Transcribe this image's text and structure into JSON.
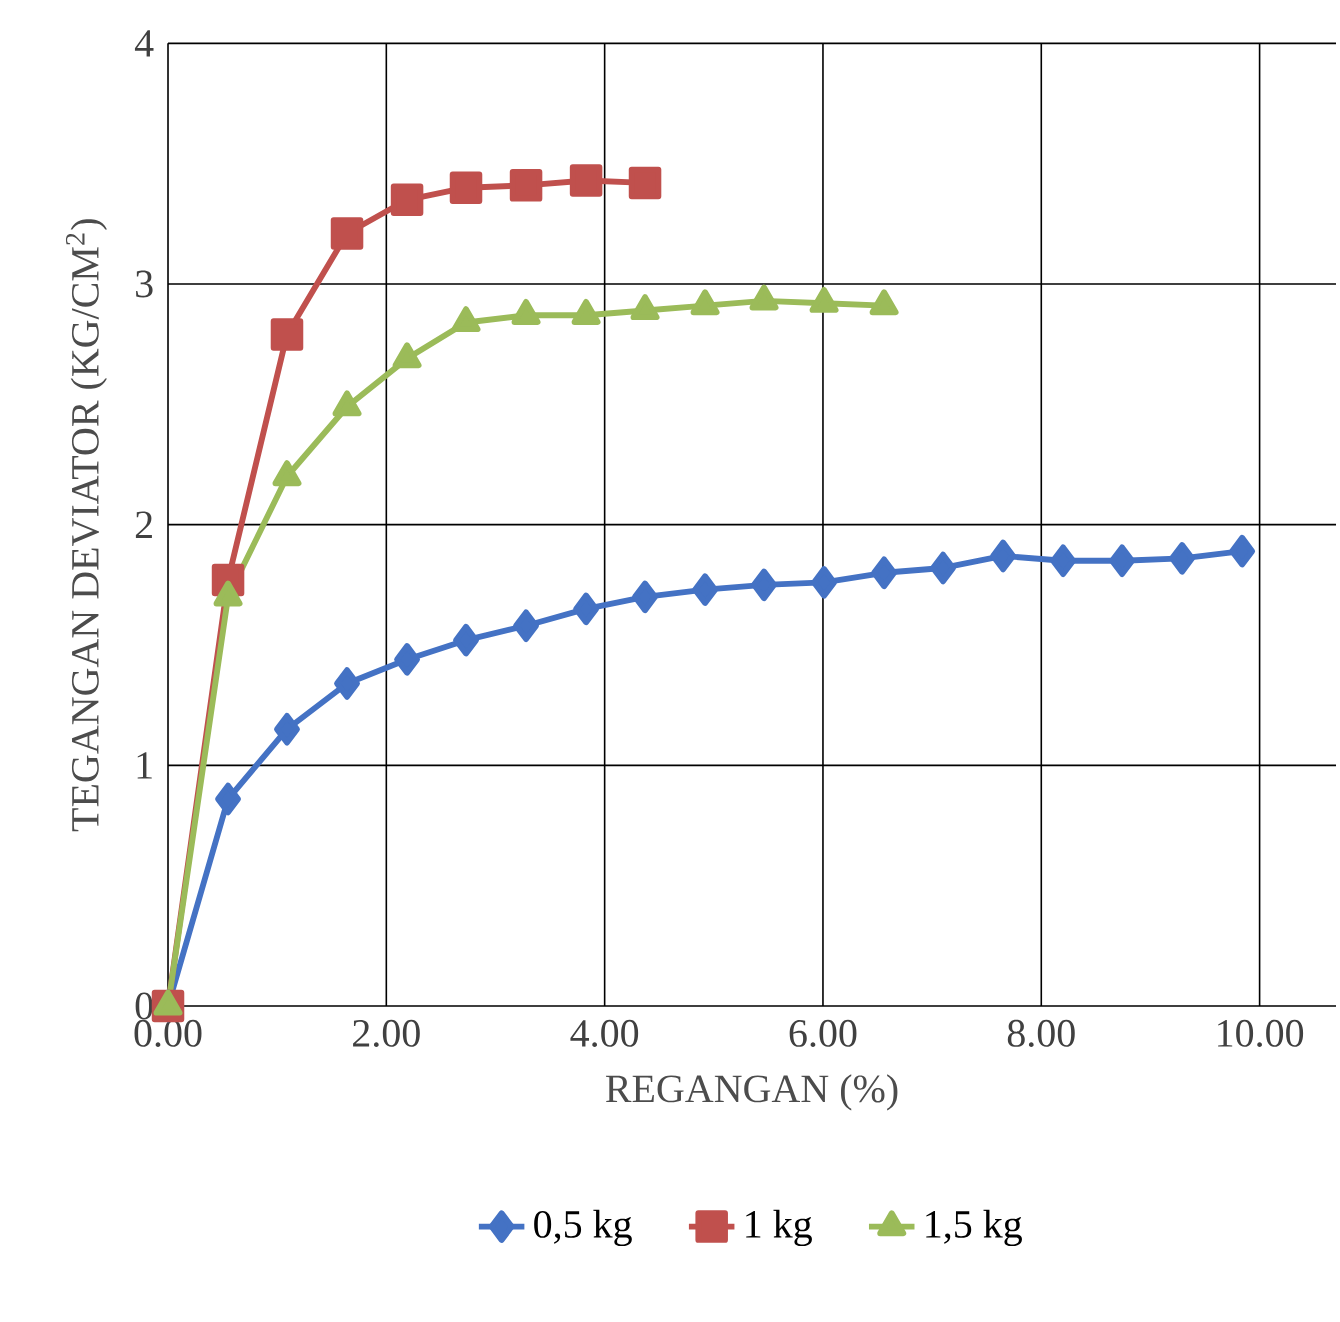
{
  "chart_data": {
    "type": "line",
    "xlabel": "REGANGAN (%)",
    "ylabel": "TEGANGAN DEVIATOR (KG/CM$^{2}$)",
    "xlim": [
      0,
      10.7
    ],
    "ylim": [
      0,
      4
    ],
    "xticks": [
      {
        "value": 0,
        "label": "0.00"
      },
      {
        "value": 2,
        "label": "2.00"
      },
      {
        "value": 4,
        "label": "4.00"
      },
      {
        "value": 6,
        "label": "6.00"
      },
      {
        "value": 8,
        "label": "8.00"
      },
      {
        "value": 10,
        "label": "10.00"
      }
    ],
    "yticks": [
      0,
      1,
      2,
      3,
      4
    ],
    "grid": true,
    "legend": "bottom",
    "series": [
      {
        "name": "0,5 kg",
        "color": "#4472c4",
        "marker": "diamond",
        "x": [
          0,
          0.55,
          1.09,
          1.64,
          2.19,
          2.73,
          3.28,
          3.83,
          4.37,
          4.92,
          5.46,
          6.01,
          6.56,
          7.1,
          7.65,
          8.2,
          8.74,
          9.29,
          9.84
        ],
        "values": [
          0,
          0.86,
          1.15,
          1.34,
          1.44,
          1.52,
          1.58,
          1.65,
          1.7,
          1.73,
          1.75,
          1.76,
          1.8,
          1.82,
          1.87,
          1.85,
          1.85,
          1.86,
          1.89
        ]
      },
      {
        "name": "1 kg",
        "color": "#c0504d",
        "marker": "square",
        "x": [
          0,
          0.55,
          1.09,
          1.64,
          2.19,
          2.73,
          3.28,
          3.83,
          4.37
        ],
        "values": [
          0,
          1.77,
          2.79,
          3.21,
          3.35,
          3.4,
          3.41,
          3.43,
          3.42
        ]
      },
      {
        "name": "1,5 kg",
        "color": "#9bbb59",
        "marker": "triangle",
        "x": [
          0,
          0.55,
          1.09,
          1.64,
          2.19,
          2.73,
          3.28,
          3.83,
          4.37,
          4.92,
          5.46,
          6.01,
          6.56
        ],
        "values": [
          0,
          1.7,
          2.2,
          2.49,
          2.69,
          2.84,
          2.87,
          2.87,
          2.89,
          2.91,
          2.93,
          2.92,
          2.91
        ]
      }
    ]
  }
}
